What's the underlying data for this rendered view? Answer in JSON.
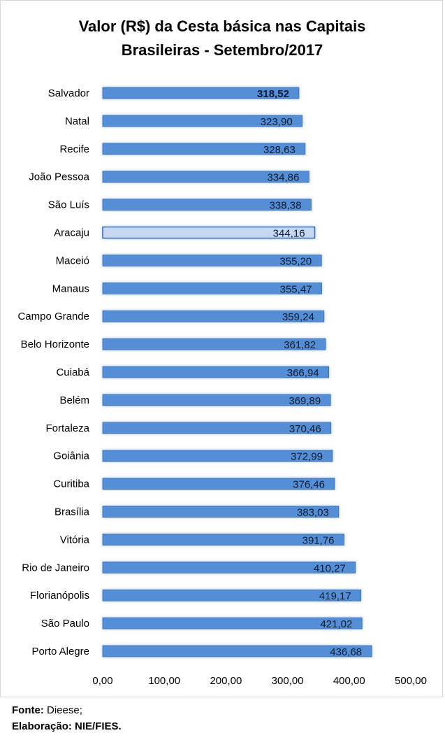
{
  "chart_data": {
    "type": "bar",
    "orientation": "horizontal",
    "title": [
      "Valor (R$) da Cesta básica nas Capitais",
      "Brasileiras -  Setembro/2017"
    ],
    "categories": [
      "Salvador",
      "Natal",
      "Recife",
      "João Pessoa",
      "São Luís",
      "Aracaju",
      "Maceió",
      "Manaus",
      "Campo Grande",
      "Belo Horizonte",
      "Cuiabá",
      "Belém",
      "Fortaleza",
      "Goiânia",
      "Curitiba",
      "Brasília",
      "Vitória",
      "Rio de Janeiro",
      "Florianópolis",
      "São Paulo",
      "Porto Alegre"
    ],
    "values": [
      318.52,
      323.9,
      328.63,
      334.86,
      338.38,
      344.16,
      355.2,
      355.47,
      359.24,
      361.82,
      366.94,
      369.89,
      370.46,
      372.99,
      376.46,
      383.03,
      391.76,
      410.27,
      419.17,
      421.02,
      436.68
    ],
    "value_labels": [
      "318,52",
      "323,90",
      "328,63",
      "334,86",
      "338,38",
      "344,16",
      "355,20",
      "355,47",
      "359,24",
      "361,82",
      "366,94",
      "369,89",
      "370,46",
      "372,99",
      "376,46",
      "383,03",
      "391,76",
      "410,27",
      "419,17",
      "421,02",
      "436,68"
    ],
    "highlight": {
      "category": "Aracaju",
      "color": "#c6d7ef"
    },
    "bold_label_category": "Salvador",
    "bar_color": "#558ed5",
    "bar_edge_color": "#3a6fb0",
    "xlim": [
      0,
      500
    ],
    "xticks": [
      "0,00",
      "100,00",
      "200,00",
      "300,00",
      "400,00",
      "500,00"
    ],
    "xtick_values": [
      0,
      100,
      200,
      300,
      400,
      500
    ],
    "grid": false,
    "legend": "none"
  },
  "footer": {
    "source_label": "Fonte:",
    "source_value": " Dieese;",
    "credit_label": "Elaboração: NIE/FIES."
  }
}
